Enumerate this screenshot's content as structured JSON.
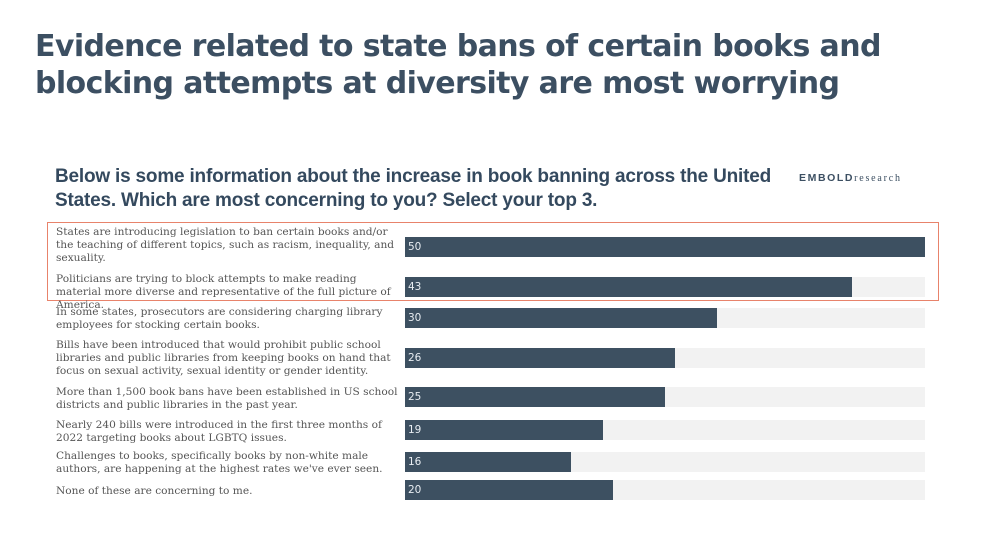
{
  "slide": {
    "title": "Evidence related to state bans of certain books and blocking attempts at diversity are most worrying"
  },
  "brand": {
    "logo_bold": "EMBOLD",
    "logo_light": "research"
  },
  "colors": {
    "title": "#3c4f62",
    "bar": "#3d5061",
    "track": "#f2f2f2",
    "highlight_border": "#e8836b"
  },
  "chart_data": {
    "type": "bar",
    "orientation": "horizontal",
    "title": "Below is some information about the increase in book banning across the United States. Which are most concerning to you? Select your top 3.",
    "xlabel": "",
    "ylabel": "",
    "xlim": [
      0,
      50
    ],
    "grid": false,
    "legend": "none",
    "categories": [
      "States are introducing legislation to ban certain books and/or the teaching of different topics, such as racism, inequality, and sexuality.",
      "Politicians are trying to block attempts to make reading material more diverse and representative of the full picture of America.",
      "In some states, prosecutors are considering charging library employees for stocking certain books.",
      "Bills have been introduced that would prohibit public school libraries and public libraries from keeping books on hand that focus on sexual activity, sexual identity or gender identity.",
      "More than 1,500 book bans have been established in US school districts and public libraries in the past year.",
      "Nearly 240 bills were introduced in the first three months of 2022 targeting books about LGBTQ issues.",
      "Challenges to books, specifically books by non-white male authors, are happening at the highest rates we've ever seen.",
      "None of these are concerning to me."
    ],
    "values": [
      50,
      43,
      30,
      26,
      25,
      19,
      16,
      20
    ],
    "data_labels": [
      "50",
      "43",
      "30",
      "26",
      "25",
      "19",
      "16",
      "20"
    ],
    "highlighted_indices": [
      0,
      1
    ]
  }
}
